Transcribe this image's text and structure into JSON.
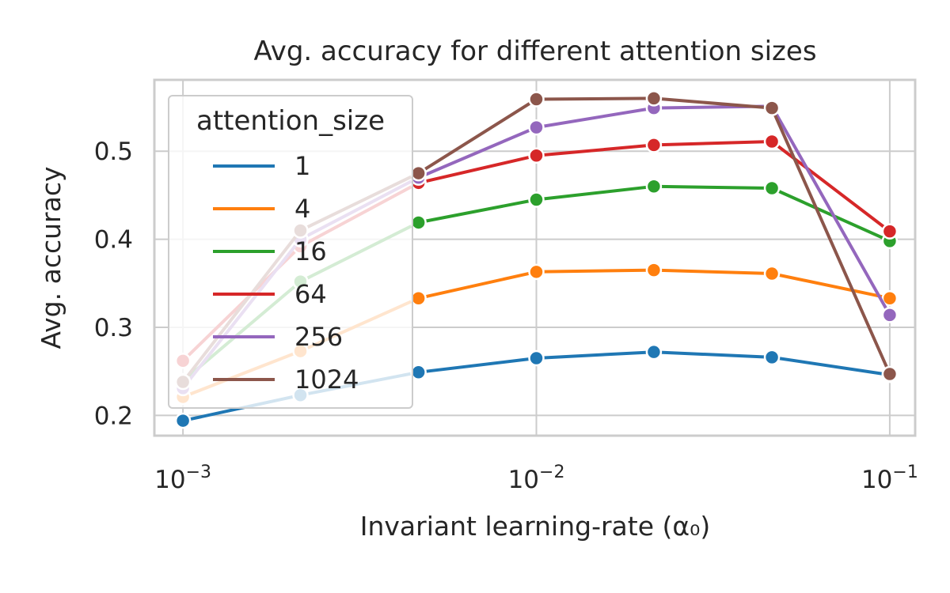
{
  "chart_data": {
    "type": "line",
    "title": "Avg. accuracy for different attention sizes",
    "xlabel": "Invariant learning-rate (α₀)",
    "ylabel": "Avg. accuracy",
    "xscale": "log",
    "xlim": [
      0.00083,
      0.118
    ],
    "ylim": [
      0.177,
      0.581
    ],
    "xticks": [
      0.001,
      0.01,
      0.1
    ],
    "xtick_labels": [
      {
        "base": "10",
        "exp": "−3"
      },
      {
        "base": "10",
        "exp": "−2"
      },
      {
        "base": "10",
        "exp": "−1"
      }
    ],
    "yticks": [
      0.2,
      0.3,
      0.4,
      0.5
    ],
    "ytick_labels": [
      "0.2",
      "0.3",
      "0.4",
      "0.5"
    ],
    "grid": true,
    "legend": {
      "title": "attention_size",
      "position": "upper-left"
    },
    "x": [
      0.001,
      0.00215,
      0.00464,
      0.01,
      0.0215,
      0.0464,
      0.1
    ],
    "series": [
      {
        "name": "1",
        "color": "#1f77b4",
        "values": [
          0.194,
          0.223,
          0.249,
          0.265,
          0.272,
          0.266,
          0.246
        ]
      },
      {
        "name": "4",
        "color": "#ff7f0e",
        "values": [
          0.221,
          0.273,
          0.333,
          0.363,
          0.365,
          0.361,
          0.333
        ]
      },
      {
        "name": "16",
        "color": "#2ca02c",
        "values": [
          0.239,
          0.352,
          0.419,
          0.445,
          0.46,
          0.458,
          0.398
        ]
      },
      {
        "name": "64",
        "color": "#d62728",
        "values": [
          0.262,
          0.392,
          0.464,
          0.495,
          0.507,
          0.511,
          0.409
        ]
      },
      {
        "name": "256",
        "color": "#9467bd",
        "values": [
          0.231,
          0.4,
          0.47,
          0.527,
          0.549,
          0.551,
          0.314
        ]
      },
      {
        "name": "1024",
        "color": "#8c564b",
        "values": [
          0.238,
          0.41,
          0.475,
          0.559,
          0.56,
          0.549,
          0.247
        ]
      }
    ]
  }
}
